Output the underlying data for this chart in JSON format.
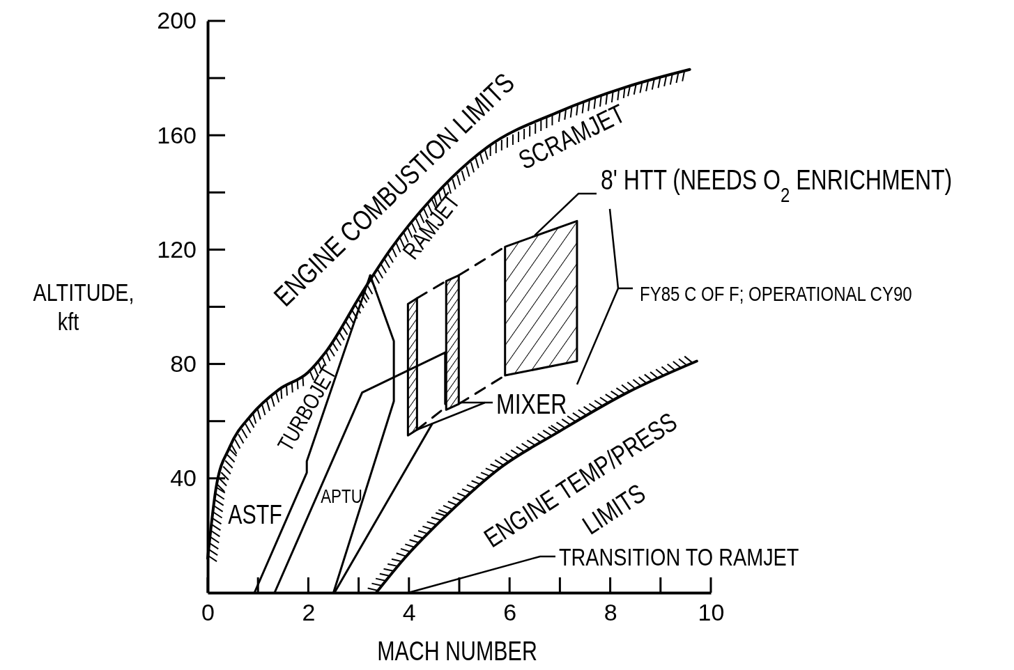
{
  "chart_data": {
    "type": "line",
    "xlabel": "MACH NUMBER",
    "ylabel": "ALTITUDE, kft",
    "xlim": [
      0,
      10
    ],
    "ylim": [
      0,
      200
    ],
    "xticks": [
      0,
      2,
      4,
      6,
      8,
      10
    ],
    "yticks": [
      40,
      80,
      120,
      160,
      200
    ],
    "grid": false,
    "marker": "none",
    "series": [
      {
        "color": "#000000",
        "x": [
          0,
          0.17,
          0.44,
          0.86,
          1.41,
          1.99,
          2.38,
          3.07,
          3.63,
          4.46,
          5.57,
          6.95,
          8.34,
          9.58
        ],
        "values": [
          12,
          37,
          51,
          62,
          71,
          77,
          85,
          105,
          120,
          138,
          156,
          168,
          177,
          183
        ]
      },
      {
        "color": "#000000",
        "x": [
          3.35,
          3.91,
          4.74,
          5.84,
          6.95,
          8.34,
          9.72
        ],
        "values": [
          0,
          12,
          27,
          44,
          56,
          70,
          81
        ]
      },
      {
        "color": "#000000",
        "x": [
          0.93,
          1.97,
          1.97,
          3.23
        ],
        "values": [
          0,
          42,
          46,
          111
        ]
      },
      {
        "color": "#000000",
        "x": [
          2.5,
          3.7,
          3.7,
          3.23
        ],
        "values": [
          0,
          67,
          88,
          111
        ]
      },
      {
        "color": "#000000",
        "x": [
          1.33,
          3.07,
          4.72,
          4.72
        ],
        "values": [
          0,
          70,
          84,
          66
        ]
      },
      {
        "color": "#000000",
        "x": [
          2.52,
          4.46
        ],
        "values": [
          0,
          59
        ]
      },
      {
        "color": "#000000",
        "x": [
          3.98,
          4.16
        ],
        "values": [
          null,
          null
        ],
        "lower": [
          55,
          57
        ],
        "upper": [
          101,
          103
        ]
      },
      {
        "color": "#000000",
        "x": [
          4.74,
          4.99
        ],
        "values": [
          null,
          null
        ],
        "lower": [
          64,
          66
        ],
        "upper": [
          109,
          111
        ]
      },
      {
        "color": "#000000",
        "x": [
          5.91,
          7.34
        ],
        "values": [
          null,
          null
        ],
        "lower": [
          76,
          81
        ],
        "upper": [
          121,
          130
        ]
      },
      {
        "color": "#000000",
        "line_style": "dashed",
        "x": [
          4.16,
          4.74
        ],
        "values": [
          103,
          109
        ]
      },
      {
        "color": "#000000",
        "line_style": "dashed",
        "x": [
          4.99,
          5.91
        ],
        "values": [
          111,
          121
        ]
      },
      {
        "color": "#000000",
        "line_style": "dashed",
        "x": [
          4.16,
          4.74
        ],
        "values": [
          57,
          65
        ]
      },
      {
        "color": "#000000",
        "line_style": "dashed",
        "x": [
          4.99,
          5.91
        ],
        "values": [
          66,
          76
        ]
      }
    ],
    "annotations": [
      "ENGINE COMBUSTION LIMITS",
      "SCRAMJET",
      "RAMJET",
      "TURBOJET",
      "ASTF",
      "APTU",
      {
        "text": "MIXER",
        "x": 4.16,
        "y": 57
      },
      {
        "text": "8' HTT (NEEDS O$_{2}$ ENRICHMENT)",
        "x": 6.5,
        "y": 125
      },
      "FY85 C OF F; OPERATIONAL CY90",
      "ENGINE TEMP/PRESS",
      "LIMITS",
      "TRANSITION TO RAMJET"
    ]
  }
}
